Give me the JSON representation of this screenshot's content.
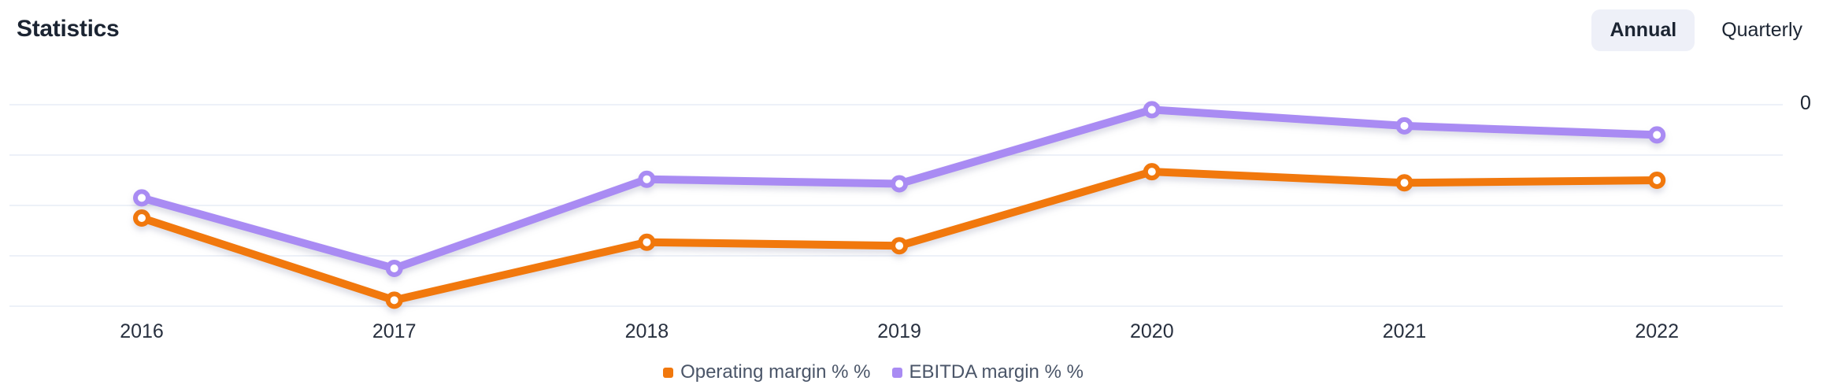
{
  "header": {
    "title": "Statistics",
    "toggles": [
      {
        "label": "Annual",
        "active": true
      },
      {
        "label": "Quarterly",
        "active": false
      }
    ]
  },
  "accent_colors": {
    "operating": "#f1780d",
    "ebitda": "#a98bf3",
    "gridline": "#edf1f8",
    "active_toggle_bg": "#eef0f8"
  },
  "chart_data": {
    "type": "line",
    "title": "Statistics",
    "categories": [
      "2016",
      "2017",
      "2018",
      "2019",
      "2020",
      "2021",
      "2022"
    ],
    "series": [
      {
        "name": "Operating margin % %",
        "color": "#f1780d",
        "values": [
          -22.5,
          -38.8,
          -27.3,
          -28.0,
          -13.3,
          -15.5,
          -15.0
        ]
      },
      {
        "name": "EBITDA margin % %",
        "color": "#a98bf3",
        "values": [
          -18.5,
          -32.5,
          -14.8,
          -15.7,
          -1.0,
          -4.2,
          -6.0
        ]
      }
    ],
    "y_axis": {
      "zero_label": "0",
      "gridline_values": [
        0,
        -10,
        -20,
        -30,
        -40
      ],
      "ylim": [
        -45,
        2
      ]
    },
    "legend_position": "bottom-center",
    "grid": "horizontal-only",
    "markers": "open-circle"
  }
}
